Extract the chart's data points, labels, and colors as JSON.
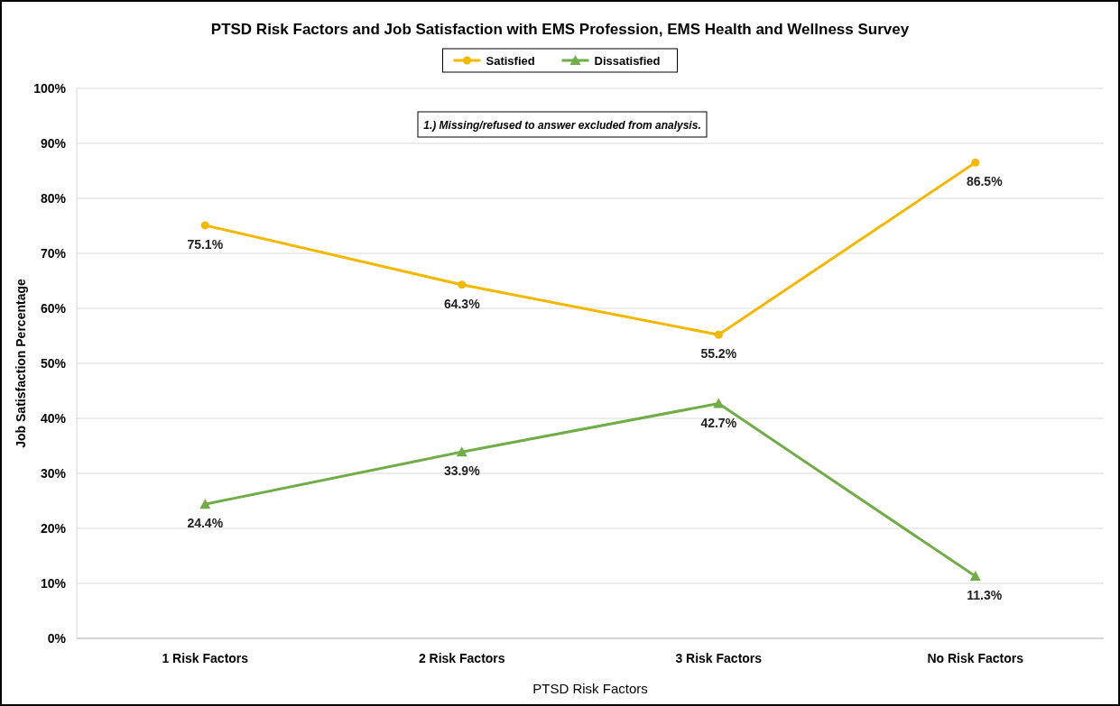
{
  "chart_data": {
    "type": "line",
    "title": "PTSD Risk Factors and Job Satisfaction with EMS Profession, EMS Health and Wellness Survey",
    "xlabel": "PTSD Risk Factors",
    "ylabel": "Job Satisfaction Percentage",
    "categories": [
      "1 Risk Factors",
      "2 Risk Factors",
      "3 Risk Factors",
      "No Risk Factors"
    ],
    "series": [
      {
        "name": "Satisfied",
        "color": "#f5b800",
        "marker": "circle",
        "values": [
          75.1,
          64.3,
          55.2,
          86.5
        ],
        "value_labels": [
          "75.1%",
          "64.3%",
          "55.2%",
          "86.5%"
        ]
      },
      {
        "name": "Dissatisfied",
        "color": "#70ad47",
        "marker": "triangle",
        "values": [
          24.4,
          33.9,
          42.7,
          11.3
        ],
        "value_labels": [
          "24.4%",
          "33.9%",
          "42.7%",
          "11.3%"
        ]
      }
    ],
    "ylim": [
      0,
      100
    ],
    "yticks": [
      {
        "value": 0,
        "label": "0%"
      },
      {
        "value": 10,
        "label": "10%"
      },
      {
        "value": 20,
        "label": "20%"
      },
      {
        "value": 30,
        "label": "30%"
      },
      {
        "value": 40,
        "label": "40%"
      },
      {
        "value": 50,
        "label": "50%"
      },
      {
        "value": 60,
        "label": "60%"
      },
      {
        "value": 70,
        "label": "70%"
      },
      {
        "value": 80,
        "label": "80%"
      },
      {
        "value": 90,
        "label": "90%"
      },
      {
        "value": 100,
        "label": "100%"
      }
    ],
    "grid": "y",
    "legend": "top",
    "line_style": "solid",
    "annotations": [
      "1.) Missing/refused to answer excluded from analysis."
    ]
  }
}
